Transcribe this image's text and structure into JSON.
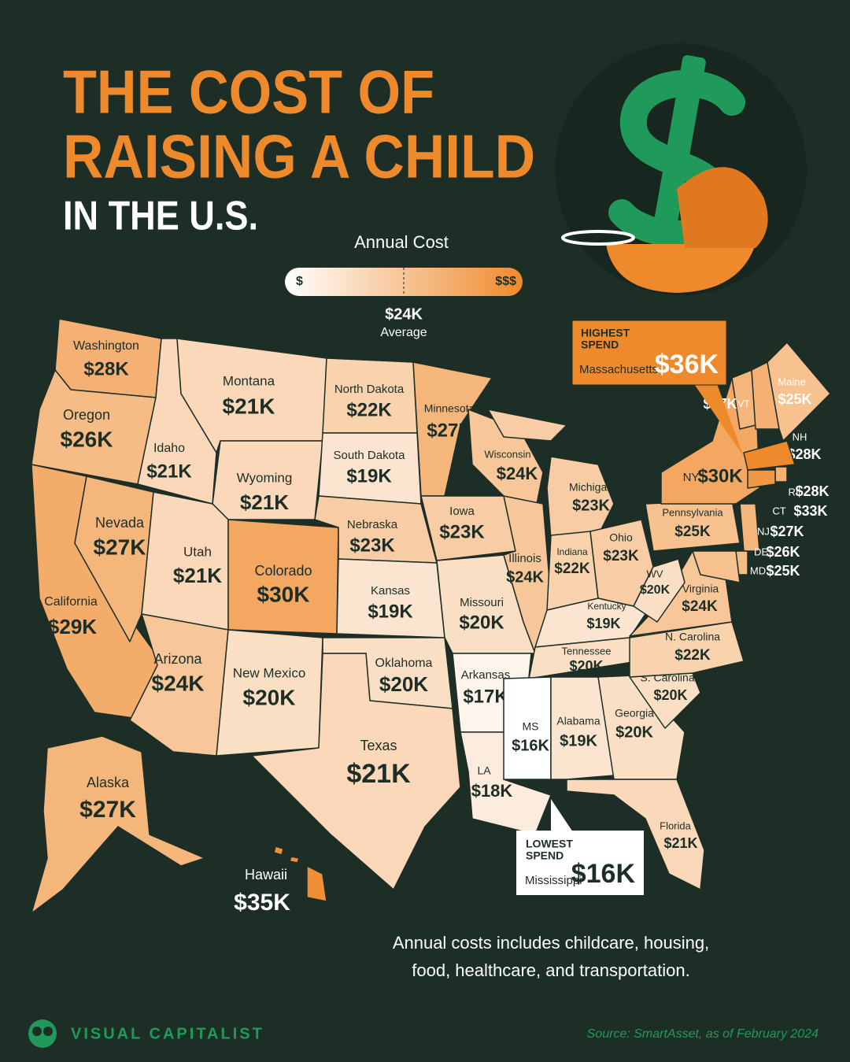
{
  "title": [
    "THE COST OF",
    "RAISING A CHILD",
    "IN THE U.S."
  ],
  "legend": {
    "title": "Annual Cost",
    "low": "$",
    "high": "$$$",
    "average_label": "$24K",
    "average_caption": "Average"
  },
  "states": [
    {
      "name": "Washington",
      "value": 28000,
      "label": "$28K"
    },
    {
      "name": "Oregon",
      "value": 26000,
      "label": "$26K"
    },
    {
      "name": "California",
      "value": 29000,
      "label": "$29K"
    },
    {
      "name": "Nevada",
      "value": 27000,
      "label": "$27K"
    },
    {
      "name": "Idaho",
      "value": 21000,
      "label": "$21K"
    },
    {
      "name": "Montana",
      "value": 21000,
      "label": "$21K"
    },
    {
      "name": "Wyoming",
      "value": 21000,
      "label": "$21K"
    },
    {
      "name": "Utah",
      "value": 21000,
      "label": "$21K"
    },
    {
      "name": "Colorado",
      "value": 30000,
      "label": "$30K"
    },
    {
      "name": "Arizona",
      "value": 24000,
      "label": "$24K"
    },
    {
      "name": "New Mexico",
      "value": 20000,
      "label": "$20K"
    },
    {
      "name": "North Dakota",
      "value": 22000,
      "label": "$22K"
    },
    {
      "name": "South Dakota",
      "value": 19000,
      "label": "$19K"
    },
    {
      "name": "Nebraska",
      "value": 23000,
      "label": "$23K"
    },
    {
      "name": "Kansas",
      "value": 19000,
      "label": "$19K"
    },
    {
      "name": "Oklahoma",
      "value": 20000,
      "label": "$20K"
    },
    {
      "name": "Texas",
      "value": 21000,
      "label": "$21K"
    },
    {
      "name": "Minnesota",
      "value": 27000,
      "label": "$27K"
    },
    {
      "name": "Iowa",
      "value": 23000,
      "label": "$23K"
    },
    {
      "name": "Missouri",
      "value": 20000,
      "label": "$20K"
    },
    {
      "name": "Arkansas",
      "value": 17000,
      "label": "$17K"
    },
    {
      "name": "LA",
      "value": 18000,
      "label": "$18K"
    },
    {
      "name": "Wisconsin",
      "value": 24000,
      "label": "$24K"
    },
    {
      "name": "Illinois",
      "value": 24000,
      "label": "$24K"
    },
    {
      "name": "Michigan",
      "value": 23000,
      "label": "$23K"
    },
    {
      "name": "Indiana",
      "value": 22000,
      "label": "$22K"
    },
    {
      "name": "Ohio",
      "value": 23000,
      "label": "$23K"
    },
    {
      "name": "Kentucky",
      "value": 19000,
      "label": "$19K"
    },
    {
      "name": "Tennessee",
      "value": 20000,
      "label": "$20K"
    },
    {
      "name": "MS",
      "value": 16000,
      "label": "$16K"
    },
    {
      "name": "Alabama",
      "value": 19000,
      "label": "$19K"
    },
    {
      "name": "Georgia",
      "value": 20000,
      "label": "$20K"
    },
    {
      "name": "Florida",
      "value": 21000,
      "label": "$21K"
    },
    {
      "name": "S. Carolina",
      "value": 20000,
      "label": "$20K"
    },
    {
      "name": "N. Carolina",
      "value": 22000,
      "label": "$22K"
    },
    {
      "name": "Virginia",
      "value": 24000,
      "label": "$24K"
    },
    {
      "name": "WV",
      "value": 20000,
      "label": "$20K"
    },
    {
      "name": "Pennsylvania",
      "value": 25000,
      "label": "$25K"
    },
    {
      "name": "NY",
      "value": 30000,
      "label": "$30K"
    },
    {
      "name": "VT",
      "value": 27000,
      "label": "$27K"
    },
    {
      "name": "NH",
      "value": 28000,
      "label": "$28K"
    },
    {
      "name": "Maine",
      "value": 25000,
      "label": "$25K"
    },
    {
      "name": "RI",
      "value": 28000,
      "label": "$28K"
    },
    {
      "name": "CT",
      "value": 33000,
      "label": "$33K"
    },
    {
      "name": "NJ",
      "value": 27000,
      "label": "$27K"
    },
    {
      "name": "DE",
      "value": 26000,
      "label": "$26K"
    },
    {
      "name": "MD",
      "value": 25000,
      "label": "$25K"
    },
    {
      "name": "Alaska",
      "value": 27000,
      "label": "$27K"
    },
    {
      "name": "Hawaii",
      "value": 35000,
      "label": "$35K"
    },
    {
      "name": "Massachusetts",
      "value": 36000,
      "label": "$36K"
    }
  ],
  "callouts": {
    "highest": {
      "heading": [
        "HIGHEST",
        "SPEND"
      ],
      "state": "Massachusetts",
      "label": "$36K"
    },
    "lowest": {
      "heading": [
        "LOWEST",
        "SPEND"
      ],
      "state": "Mississippi",
      "label": "$16K"
    }
  },
  "footnote": [
    "Annual costs includes childcare, housing,",
    "food, healthcare, and transportation."
  ],
  "brand": "VISUAL CAPITALIST",
  "source": "Source: SmartAsset, as of February 2024"
}
